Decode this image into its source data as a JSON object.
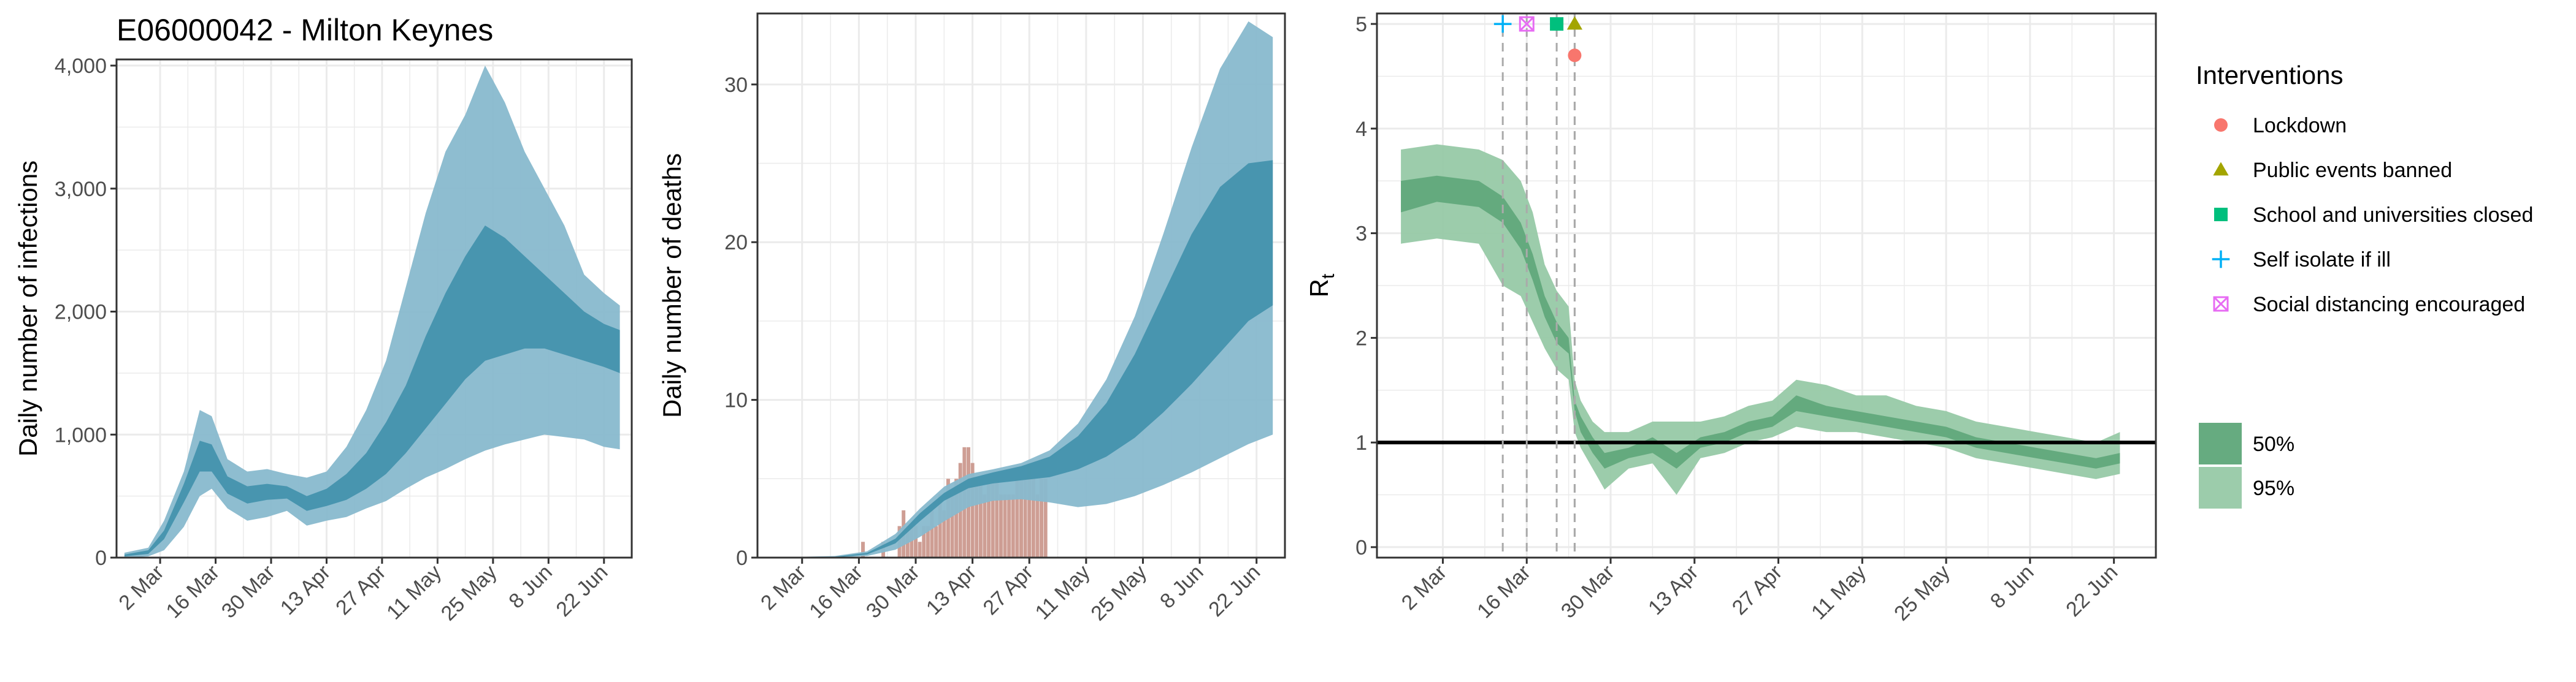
{
  "figure_title": "E06000042 - Milton Keynes",
  "colors": {
    "band_light": "#88b9cd",
    "band_dark": "#3c8ea9",
    "deaths_bar": "#c99488",
    "rt_light": "#97c9a7",
    "rt_dark": "#5ea679",
    "grid": "#ebebeb",
    "panel_border": "#333333",
    "ref_line": "#000000",
    "lockdown": "#f8766d",
    "public_events": "#a3a500",
    "school": "#00bf7d",
    "self_isolate": "#00b0f6",
    "social_distancing": "#e76bf3"
  },
  "chart_data": [
    {
      "type": "area",
      "title": "E06000042 - Milton Keynes",
      "ylabel": "Daily number of infections",
      "xlabel": "",
      "x_tick_labels": [
        "2 Mar",
        "16 Mar",
        "30 Mar",
        "13 Apr",
        "27 Apr",
        "11 May",
        "25 May",
        "8 Jun",
        "22 Jun"
      ],
      "y_tick_labels": [
        "0",
        "1,000",
        "2,000",
        "3,000",
        "4,000"
      ],
      "y_tick_values": [
        0,
        1000,
        2000,
        3000,
        4000
      ],
      "ylim": [
        0,
        4050
      ],
      "xlim_dates": [
        "2020-02-20",
        "2020-06-29"
      ],
      "grid": true,
      "series": [
        {
          "band": "95%",
          "x": [
            "2020-02-22",
            "2020-02-28",
            "2020-03-03",
            "2020-03-08",
            "2020-03-12",
            "2020-03-15",
            "2020-03-19",
            "2020-03-24",
            "2020-03-29",
            "2020-04-03",
            "2020-04-08",
            "2020-04-13",
            "2020-04-18",
            "2020-04-23",
            "2020-04-28",
            "2020-05-03",
            "2020-05-08",
            "2020-05-13",
            "2020-05-18",
            "2020-05-23",
            "2020-05-28",
            "2020-06-02",
            "2020-06-07",
            "2020-06-12",
            "2020-06-17",
            "2020-06-22",
            "2020-06-26"
          ],
          "lower": [
            0,
            10,
            60,
            250,
            500,
            560,
            400,
            300,
            330,
            380,
            260,
            300,
            330,
            400,
            460,
            560,
            650,
            720,
            800,
            870,
            920,
            960,
            1000,
            980,
            960,
            900,
            880
          ],
          "upper": [
            40,
            80,
            300,
            700,
            1200,
            1150,
            800,
            700,
            720,
            680,
            650,
            700,
            900,
            1200,
            1600,
            2200,
            2800,
            3300,
            3600,
            4000,
            3700,
            3300,
            3000,
            2700,
            2300,
            2150,
            2050
          ]
        },
        {
          "band": "50%",
          "x": [
            "2020-02-22",
            "2020-02-28",
            "2020-03-03",
            "2020-03-08",
            "2020-03-12",
            "2020-03-15",
            "2020-03-19",
            "2020-03-24",
            "2020-03-29",
            "2020-04-03",
            "2020-04-08",
            "2020-04-13",
            "2020-04-18",
            "2020-04-23",
            "2020-04-28",
            "2020-05-03",
            "2020-05-08",
            "2020-05-13",
            "2020-05-18",
            "2020-05-23",
            "2020-05-28",
            "2020-06-02",
            "2020-06-07",
            "2020-06-12",
            "2020-06-17",
            "2020-06-22",
            "2020-06-26"
          ],
          "lower": [
            10,
            30,
            150,
            450,
            700,
            700,
            520,
            440,
            470,
            480,
            380,
            420,
            470,
            560,
            680,
            850,
            1050,
            1250,
            1450,
            1600,
            1650,
            1700,
            1700,
            1650,
            1600,
            1550,
            1500
          ],
          "upper": [
            25,
            60,
            220,
            600,
            950,
            920,
            660,
            580,
            600,
            580,
            500,
            560,
            680,
            850,
            1100,
            1400,
            1800,
            2150,
            2450,
            2700,
            2600,
            2450,
            2300,
            2150,
            2000,
            1900,
            1850
          ]
        }
      ]
    },
    {
      "type": "area",
      "ylabel": "Daily number of deaths",
      "xlabel": "",
      "x_tick_labels": [
        "2 Mar",
        "16 Mar",
        "30 Mar",
        "13 Apr",
        "27 Apr",
        "11 May",
        "25 May",
        "8 Jun",
        "22 Jun"
      ],
      "y_tick_labels": [
        "0",
        "10",
        "20",
        "30"
      ],
      "y_tick_values": [
        0,
        10,
        20,
        30
      ],
      "ylim": [
        0,
        34.5
      ],
      "xlim_dates": [
        "2020-02-20",
        "2020-06-29"
      ],
      "grid": true,
      "series": [
        {
          "band": "95%",
          "x": [
            "2020-02-22",
            "2020-03-10",
            "2020-03-18",
            "2020-03-25",
            "2020-03-31",
            "2020-04-06",
            "2020-04-12",
            "2020-04-18",
            "2020-04-25",
            "2020-05-02",
            "2020-05-09",
            "2020-05-16",
            "2020-05-23",
            "2020-05-30",
            "2020-06-06",
            "2020-06-13",
            "2020-06-20",
            "2020-06-26"
          ],
          "lower": [
            0,
            0,
            0.1,
            0.5,
            1.3,
            2.3,
            3.2,
            3.6,
            3.7,
            3.5,
            3.2,
            3.4,
            3.9,
            4.6,
            5.4,
            6.3,
            7.2,
            7.8
          ],
          "upper": [
            0,
            0.1,
            0.4,
            1.5,
            3.1,
            4.5,
            5.3,
            5.6,
            6.0,
            6.8,
            8.5,
            11.3,
            15.3,
            20.5,
            26.0,
            31.0,
            34.0,
            33.0
          ]
        },
        {
          "band": "50%",
          "x": [
            "2020-02-22",
            "2020-03-10",
            "2020-03-18",
            "2020-03-25",
            "2020-03-31",
            "2020-04-06",
            "2020-04-12",
            "2020-04-18",
            "2020-04-25",
            "2020-05-02",
            "2020-05-09",
            "2020-05-16",
            "2020-05-23",
            "2020-05-30",
            "2020-06-06",
            "2020-06-13",
            "2020-06-20",
            "2020-06-26"
          ],
          "lower": [
            0,
            0,
            0.2,
            0.9,
            2.3,
            3.6,
            4.4,
            4.7,
            4.9,
            5.1,
            5.6,
            6.4,
            7.6,
            9.2,
            11.0,
            13.0,
            15.0,
            16.0
          ],
          "upper": [
            0,
            0.05,
            0.3,
            1.2,
            2.8,
            4.1,
            5.0,
            5.4,
            5.8,
            6.4,
            7.7,
            9.8,
            12.9,
            16.7,
            20.5,
            23.5,
            25.0,
            25.2
          ]
        }
      ],
      "bars": {
        "x": [
          "2020-03-17",
          "2020-03-22",
          "2020-03-26",
          "2020-03-27",
          "2020-03-28",
          "2020-03-29",
          "2020-03-30",
          "2020-03-31",
          "2020-04-01",
          "2020-04-02",
          "2020-04-03",
          "2020-04-04",
          "2020-04-05",
          "2020-04-06",
          "2020-04-07",
          "2020-04-08",
          "2020-04-09",
          "2020-04-10",
          "2020-04-11",
          "2020-04-12",
          "2020-04-13",
          "2020-04-14",
          "2020-04-15",
          "2020-04-16",
          "2020-04-17",
          "2020-04-18",
          "2020-04-19",
          "2020-04-20",
          "2020-04-21",
          "2020-04-22",
          "2020-04-23",
          "2020-04-24",
          "2020-04-25",
          "2020-04-26",
          "2020-04-27",
          "2020-04-28",
          "2020-04-29",
          "2020-04-30",
          "2020-05-01"
        ],
        "values": [
          1,
          1,
          2,
          3,
          2,
          2,
          2,
          1,
          2,
          2,
          3,
          2,
          4,
          3,
          5,
          4,
          5,
          6,
          7,
          7,
          6,
          5,
          5,
          4,
          5,
          5,
          5,
          4,
          4,
          4,
          4,
          5,
          5,
          5,
          6,
          5,
          4,
          5,
          5
        ]
      }
    },
    {
      "type": "area",
      "ylabel": "R",
      "ylabel_subscript": "t",
      "xlabel": "",
      "x_tick_labels": [
        "2 Mar",
        "16 Mar",
        "30 Mar",
        "13 Apr",
        "27 Apr",
        "11 May",
        "25 May",
        "8 Jun",
        "22 Jun"
      ],
      "y_tick_labels": [
        "0",
        "1",
        "2",
        "3",
        "4",
        "5"
      ],
      "y_tick_values": [
        0,
        1,
        2,
        3,
        4,
        5
      ],
      "ylim": [
        -0.1,
        5.1
      ],
      "xlim_dates": [
        "2020-02-20",
        "2020-06-29"
      ],
      "grid": true,
      "reference_line": 1,
      "series": [
        {
          "band": "95%",
          "x": [
            "2020-02-24",
            "2020-03-01",
            "2020-03-08",
            "2020-03-12",
            "2020-03-15",
            "2020-03-17",
            "2020-03-19",
            "2020-03-21",
            "2020-03-23",
            "2020-03-24",
            "2020-03-25",
            "2020-03-27",
            "2020-03-29",
            "2020-04-02",
            "2020-04-06",
            "2020-04-10",
            "2020-04-14",
            "2020-04-18",
            "2020-04-22",
            "2020-04-26",
            "2020-04-30",
            "2020-05-05",
            "2020-05-10",
            "2020-05-15",
            "2020-05-20",
            "2020-05-25",
            "2020-05-30",
            "2020-06-04",
            "2020-06-09",
            "2020-06-14",
            "2020-06-19",
            "2020-06-23"
          ],
          "lower": [
            2.9,
            2.95,
            2.9,
            2.5,
            2.4,
            2.15,
            1.9,
            1.7,
            1.6,
            1.1,
            0.95,
            0.75,
            0.55,
            0.75,
            0.8,
            0.5,
            0.85,
            0.9,
            1.0,
            1.05,
            1.15,
            1.1,
            1.1,
            1.05,
            1.0,
            0.95,
            0.85,
            0.8,
            0.75,
            0.7,
            0.65,
            0.7
          ],
          "upper": [
            3.8,
            3.85,
            3.8,
            3.7,
            3.5,
            3.2,
            2.7,
            2.45,
            2.3,
            1.6,
            1.4,
            1.2,
            1.1,
            1.1,
            1.2,
            1.2,
            1.2,
            1.25,
            1.35,
            1.4,
            1.6,
            1.55,
            1.45,
            1.45,
            1.35,
            1.3,
            1.2,
            1.15,
            1.1,
            1.05,
            1.0,
            1.1
          ]
        },
        {
          "band": "50%",
          "x": [
            "2020-02-24",
            "2020-03-01",
            "2020-03-08",
            "2020-03-12",
            "2020-03-15",
            "2020-03-17",
            "2020-03-19",
            "2020-03-21",
            "2020-03-23",
            "2020-03-24",
            "2020-03-25",
            "2020-03-27",
            "2020-03-29",
            "2020-04-02",
            "2020-04-06",
            "2020-04-10",
            "2020-04-14",
            "2020-04-18",
            "2020-04-22",
            "2020-04-26",
            "2020-04-30",
            "2020-05-05",
            "2020-05-10",
            "2020-05-15",
            "2020-05-20",
            "2020-05-25",
            "2020-05-30",
            "2020-06-04",
            "2020-06-09",
            "2020-06-14",
            "2020-06-19",
            "2020-06-23"
          ],
          "lower": [
            3.2,
            3.3,
            3.25,
            3.1,
            2.85,
            2.55,
            2.2,
            1.95,
            1.85,
            1.3,
            1.1,
            0.9,
            0.75,
            0.85,
            0.9,
            0.75,
            0.95,
            1.0,
            1.1,
            1.15,
            1.3,
            1.25,
            1.2,
            1.15,
            1.1,
            1.05,
            0.95,
            0.9,
            0.85,
            0.8,
            0.75,
            0.8
          ],
          "upper": [
            3.5,
            3.55,
            3.5,
            3.35,
            3.1,
            2.8,
            2.4,
            2.15,
            2.0,
            1.4,
            1.25,
            1.05,
            0.9,
            0.95,
            1.05,
            0.9,
            1.05,
            1.1,
            1.2,
            1.25,
            1.45,
            1.35,
            1.3,
            1.25,
            1.2,
            1.15,
            1.05,
            1.0,
            0.95,
            0.9,
            0.85,
            0.9
          ]
        }
      ],
      "interventions": [
        {
          "name": "Self isolate if ill",
          "date": "2020-03-12",
          "symbol": "plus",
          "y": 5
        },
        {
          "name": "Social distancing encouraged",
          "date": "2020-03-16",
          "symbol": "square-x",
          "y": 5
        },
        {
          "name": "School and universities closed",
          "date": "2020-03-21",
          "symbol": "square",
          "y": 5
        },
        {
          "name": "Public events banned",
          "date": "2020-03-24",
          "symbol": "triangle",
          "y": 5
        },
        {
          "name": "Lockdown",
          "date": "2020-03-24",
          "symbol": "circle",
          "y": 4.7
        }
      ]
    }
  ],
  "legend": {
    "title": "Interventions",
    "items": [
      {
        "label": "Lockdown",
        "symbol": "circle",
        "color_key": "lockdown"
      },
      {
        "label": "Public events banned",
        "symbol": "triangle",
        "color_key": "public_events"
      },
      {
        "label": "School and universities closed",
        "symbol": "square",
        "color_key": "school"
      },
      {
        "label": "Self isolate if ill",
        "symbol": "plus",
        "color_key": "self_isolate"
      },
      {
        "label": "Social distancing encouraged",
        "symbol": "square-x",
        "color_key": "social_distancing"
      }
    ],
    "bands": [
      {
        "label": "50%",
        "color_key": "rt_dark"
      },
      {
        "label": "95%",
        "color_key": "rt_light"
      }
    ]
  }
}
